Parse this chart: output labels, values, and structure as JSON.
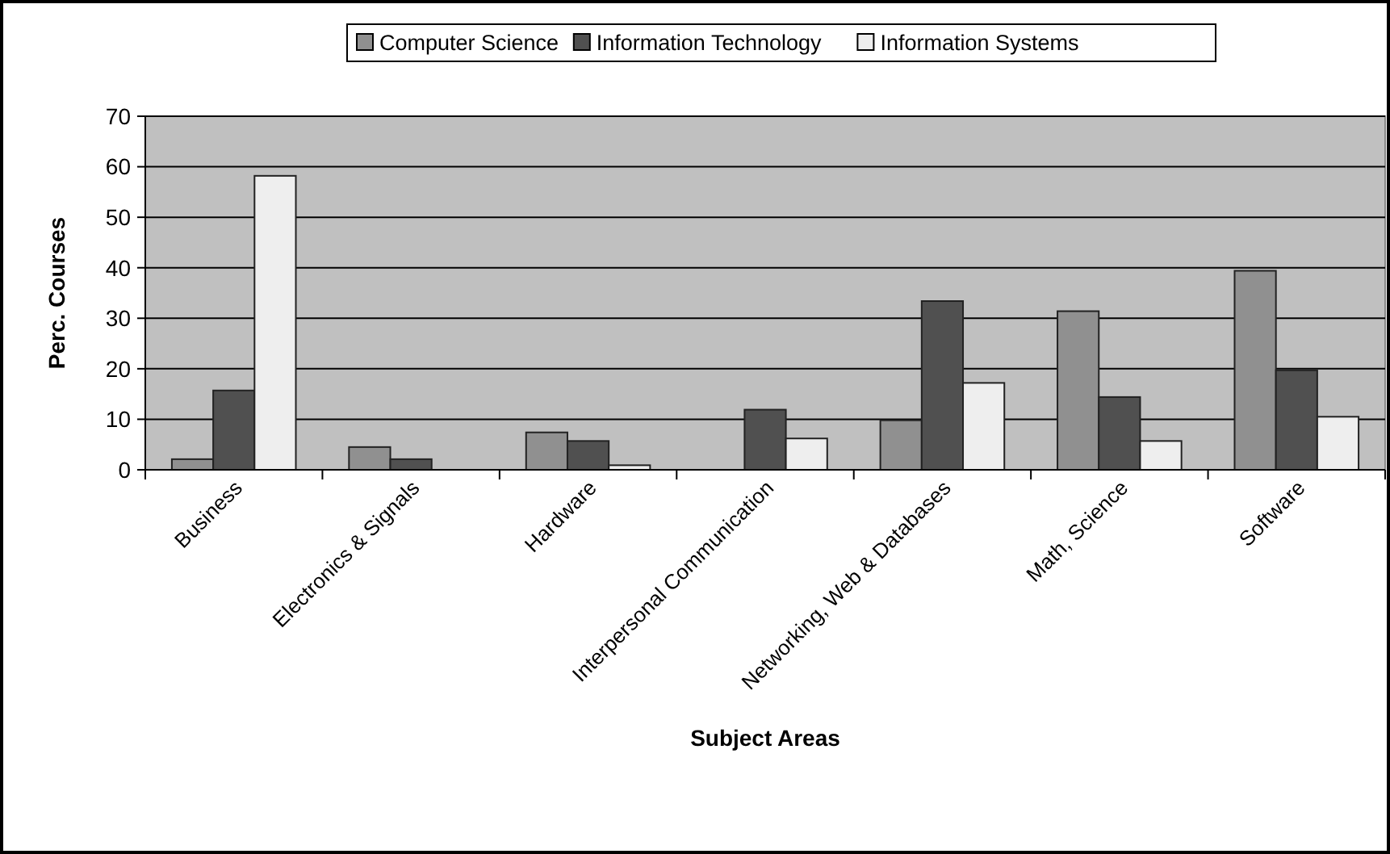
{
  "chart_data": {
    "type": "bar",
    "xlabel": "Subject Areas",
    "ylabel": "Perc. Courses",
    "categories": [
      "Business",
      "Electronics & Signals",
      "Hardware",
      "Interpersonal Communication",
      "Networking, Web & Databases",
      "Math, Science",
      "Software"
    ],
    "series": [
      {
        "name": "Computer Science",
        "color": "#909090",
        "values": [
          2.1,
          4.5,
          7.4,
          0,
          9.8,
          31.4,
          39.4
        ]
      },
      {
        "name": "Information Technology",
        "color": "#505050",
        "values": [
          15.7,
          2.1,
          5.7,
          11.9,
          33.4,
          14.4,
          19.7
        ]
      },
      {
        "name": "Information Systems",
        "color": "#eeeeee",
        "values": [
          58.2,
          0,
          0.9,
          6.2,
          17.2,
          5.7,
          10.5
        ]
      }
    ],
    "ylim": [
      0,
      70
    ],
    "yticks": [
      0,
      10,
      20,
      30,
      40,
      50,
      60,
      70
    ],
    "grid": "y",
    "legend": "top"
  }
}
